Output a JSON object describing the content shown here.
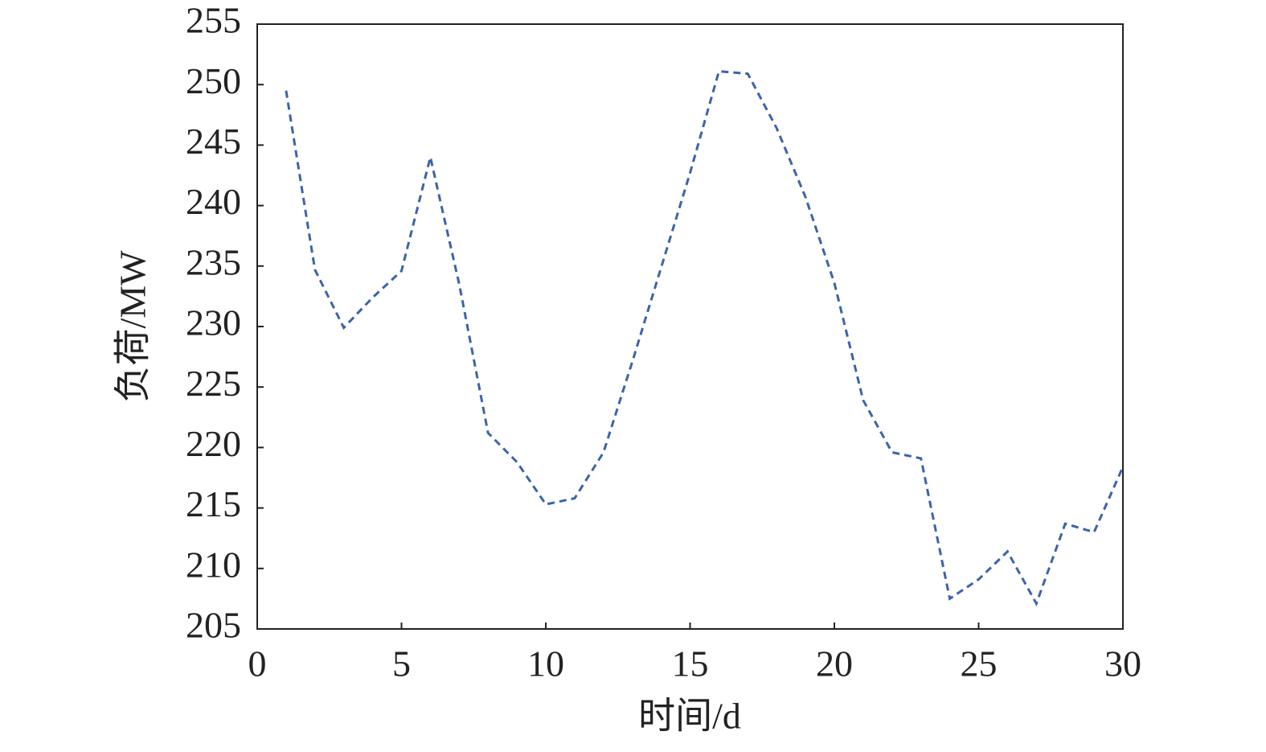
{
  "chart_data": {
    "type": "line",
    "x_label": "时间/d",
    "y_label": "负荷/MW",
    "x": [
      1,
      2,
      3,
      4,
      5,
      6,
      7,
      8,
      9,
      10,
      11,
      12,
      13,
      14,
      15,
      16,
      17,
      18,
      19,
      20,
      21,
      22,
      23,
      24,
      25,
      26,
      27,
      28,
      29,
      30
    ],
    "series": [
      {
        "color": "#3b64a8",
        "dashed": true,
        "values": [
          249.5,
          234.7,
          229.9,
          232.4,
          234.6,
          244.0,
          233.5,
          221.2,
          218.8,
          215.3,
          215.8,
          219.6,
          227.1,
          234.9,
          242.7,
          251.1,
          250.9,
          246.4,
          240.7,
          233.6,
          223.9,
          219.6,
          219.1,
          207.5,
          209.1,
          211.4,
          207.1,
          213.7,
          213.0,
          218.4
        ]
      }
    ],
    "xlim": [
      0,
      30
    ],
    "xticks": [
      0,
      5,
      10,
      15,
      20,
      25,
      30
    ],
    "ylim": [
      205,
      255
    ],
    "yticks": [
      205,
      210,
      215,
      220,
      225,
      230,
      235,
      240,
      245,
      250,
      255
    ],
    "grid": false
  }
}
